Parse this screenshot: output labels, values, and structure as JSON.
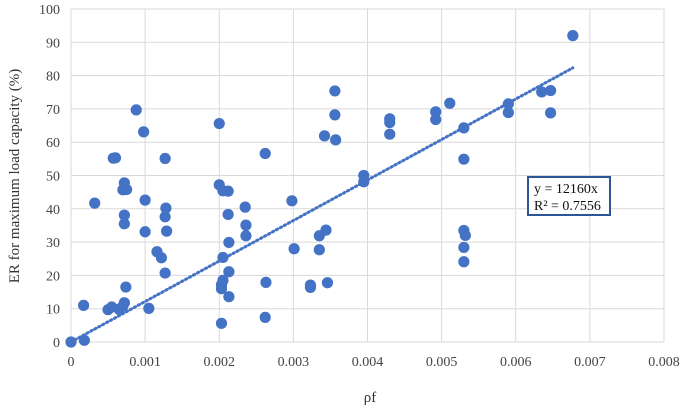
{
  "chart_data": {
    "type": "scatter",
    "title": "",
    "xlabel": "ρf",
    "ylabel": "ER for maximum load capacity (%)",
    "xlim": [
      0,
      0.008
    ],
    "ylim": [
      0,
      100
    ],
    "x_ticks": [
      "0",
      "0.001",
      "0.002",
      "0.003",
      "0.004",
      "0.005",
      "0.006",
      "0.007",
      "0.008"
    ],
    "y_ticks": [
      "0",
      "10",
      "20",
      "30",
      "40",
      "50",
      "60",
      "70",
      "80",
      "90",
      "100"
    ],
    "grid": true,
    "marker_color": "#4472C4",
    "trendline": {
      "type": "linear",
      "slope": 12160,
      "intercept": 0,
      "x_range": [
        0,
        0.00677
      ],
      "style": "dotted",
      "color": "#4472C4"
    },
    "annotation": {
      "equation": "y = 12160x",
      "r_squared": "R² = 0.7556",
      "border_color": "#2E5597"
    },
    "series": [
      {
        "points": [
          [
            0.0,
            0.0
          ],
          [
            0.00018,
            0.5
          ],
          [
            0.00017,
            11.0
          ],
          [
            0.00032,
            41.7
          ],
          [
            0.0005,
            9.7
          ],
          [
            0.00055,
            10.5
          ],
          [
            0.00057,
            55.2
          ],
          [
            0.0006,
            55.3
          ],
          [
            0.00065,
            9.8
          ],
          [
            0.0007,
            10.8
          ],
          [
            0.00072,
            11.8
          ],
          [
            0.0007,
            45.7
          ],
          [
            0.00072,
            47.8
          ],
          [
            0.00072,
            38.1
          ],
          [
            0.00072,
            35.5
          ],
          [
            0.00074,
            16.5
          ],
          [
            0.00075,
            45.8
          ],
          [
            0.00088,
            69.7
          ],
          [
            0.00098,
            63.1
          ],
          [
            0.001,
            42.6
          ],
          [
            0.001,
            33.1
          ],
          [
            0.00105,
            10.1
          ],
          [
            0.00116,
            27.1
          ],
          [
            0.00122,
            25.3
          ],
          [
            0.00127,
            55.1
          ],
          [
            0.00128,
            40.2
          ],
          [
            0.00127,
            37.6
          ],
          [
            0.00129,
            33.3
          ],
          [
            0.00127,
            20.7
          ],
          [
            0.002,
            65.6
          ],
          [
            0.002,
            47.2
          ],
          [
            0.00205,
            45.4
          ],
          [
            0.00212,
            45.3
          ],
          [
            0.00212,
            38.3
          ],
          [
            0.00205,
            25.4
          ],
          [
            0.00213,
            29.9
          ],
          [
            0.00205,
            18.5
          ],
          [
            0.00203,
            17.2
          ],
          [
            0.00203,
            16.0
          ],
          [
            0.00213,
            13.6
          ],
          [
            0.00203,
            5.6
          ],
          [
            0.00213,
            21.1
          ],
          [
            0.00235,
            40.5
          ],
          [
            0.00236,
            35.1
          ],
          [
            0.00236,
            31.9
          ],
          [
            0.00262,
            56.6
          ],
          [
            0.00263,
            17.9
          ],
          [
            0.00262,
            7.4
          ],
          [
            0.00298,
            42.4
          ],
          [
            0.00301,
            28.0
          ],
          [
            0.00323,
            17.1
          ],
          [
            0.00323,
            16.4
          ],
          [
            0.00335,
            31.9
          ],
          [
            0.00335,
            27.7
          ],
          [
            0.00342,
            61.9
          ],
          [
            0.00344,
            33.6
          ],
          [
            0.00346,
            17.8
          ],
          [
            0.00356,
            75.4
          ],
          [
            0.00356,
            68.2
          ],
          [
            0.00357,
            60.7
          ],
          [
            0.00395,
            50.0
          ],
          [
            0.00395,
            48.1
          ],
          [
            0.0043,
            67.0
          ],
          [
            0.0043,
            65.9
          ],
          [
            0.0043,
            62.4
          ],
          [
            0.00492,
            69.1
          ],
          [
            0.00492,
            66.8
          ],
          [
            0.00511,
            71.7
          ],
          [
            0.0053,
            64.3
          ],
          [
            0.0053,
            54.9
          ],
          [
            0.0053,
            33.5
          ],
          [
            0.00532,
            32.0
          ],
          [
            0.0053,
            28.4
          ],
          [
            0.0053,
            24.1
          ],
          [
            0.0059,
            71.5
          ],
          [
            0.0059,
            68.9
          ],
          [
            0.00635,
            75.1
          ],
          [
            0.00647,
            75.5
          ],
          [
            0.00647,
            68.8
          ],
          [
            0.00677,
            92.0
          ]
        ]
      }
    ]
  }
}
